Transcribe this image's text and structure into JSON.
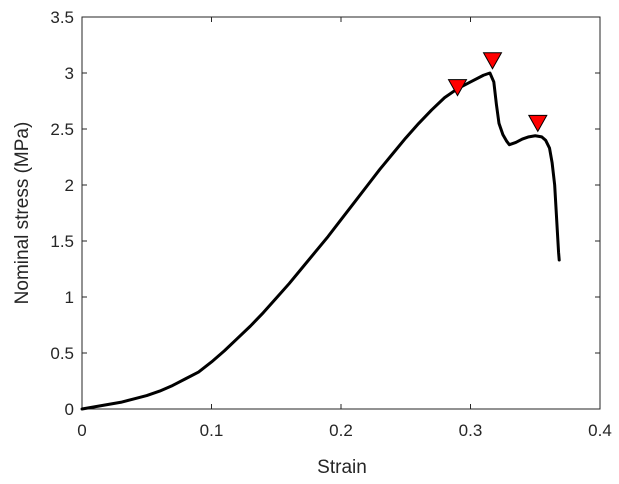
{
  "chart_data": {
    "type": "line",
    "title": "",
    "xlabel": "Strain",
    "ylabel": "Nominal stress (MPa)",
    "xlim": [
      0,
      0.4
    ],
    "ylim": [
      0,
      3.5
    ],
    "xticks": [
      0,
      0.1,
      0.2,
      0.3,
      0.4
    ],
    "xtick_labels": [
      "0",
      "0.1",
      "0.2",
      "0.3",
      "0.4"
    ],
    "yticks": [
      0,
      0.5,
      1,
      1.5,
      2,
      2.5,
      3,
      3.5
    ],
    "ytick_labels": [
      "0",
      "0.5",
      "1",
      "1.5",
      "2",
      "2.5",
      "3",
      "3.5"
    ],
    "grid": false,
    "box": true,
    "series": [
      {
        "color": "#000000",
        "x": [
          0,
          0.01,
          0.02,
          0.03,
          0.04,
          0.05,
          0.06,
          0.07,
          0.08,
          0.09,
          0.1,
          0.11,
          0.12,
          0.13,
          0.14,
          0.15,
          0.16,
          0.17,
          0.18,
          0.19,
          0.2,
          0.21,
          0.22,
          0.23,
          0.24,
          0.25,
          0.26,
          0.27,
          0.28,
          0.29,
          0.3,
          0.31,
          0.315,
          0.318,
          0.32,
          0.322,
          0.325,
          0.328,
          0.33,
          0.335,
          0.34,
          0.345,
          0.35,
          0.355,
          0.358,
          0.361,
          0.363,
          0.365,
          0.366,
          0.367,
          0.368,
          0.3685
        ],
        "y": [
          0,
          0.02,
          0.04,
          0.06,
          0.09,
          0.12,
          0.16,
          0.21,
          0.27,
          0.33,
          0.42,
          0.52,
          0.63,
          0.74,
          0.86,
          0.99,
          1.12,
          1.26,
          1.4,
          1.54,
          1.69,
          1.84,
          1.99,
          2.14,
          2.28,
          2.42,
          2.55,
          2.67,
          2.78,
          2.86,
          2.92,
          2.98,
          3.0,
          2.92,
          2.72,
          2.55,
          2.45,
          2.39,
          2.36,
          2.38,
          2.41,
          2.43,
          2.44,
          2.43,
          2.4,
          2.33,
          2.2,
          2.0,
          1.8,
          1.6,
          1.4,
          1.33
        ]
      }
    ],
    "markers": [
      {
        "x": 0.29,
        "y": 2.87,
        "shape": "triangle-down",
        "color": "#ff0000"
      },
      {
        "x": 0.317,
        "y": 3.11,
        "shape": "triangle-down",
        "color": "#ff0000"
      },
      {
        "x": 0.352,
        "y": 2.55,
        "shape": "triangle-down",
        "color": "#ff0000"
      }
    ]
  }
}
